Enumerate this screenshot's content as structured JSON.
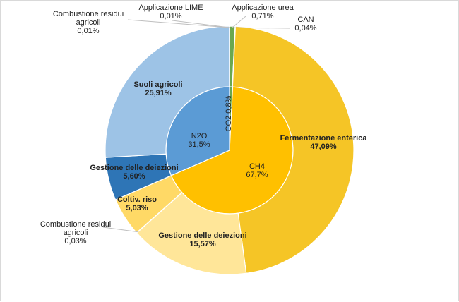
{
  "chart_data": {
    "type": "pie",
    "title": "",
    "inner_ring": [
      {
        "name": "CO2",
        "value": 0.8,
        "label": "0,8%",
        "color": "#6aa84f"
      },
      {
        "name": "CH4",
        "value": 67.7,
        "label": "67,7%",
        "color": "#ffc000"
      },
      {
        "name": "N2O",
        "value": 31.5,
        "label": "31,5%",
        "color": "#5b9bd5"
      }
    ],
    "outer_ring": [
      {
        "name": "Applicazione LIME",
        "value": 0.01,
        "label": "0,01%",
        "gas": "CO2",
        "color": "#2e7d32"
      },
      {
        "name": "Applicazione urea",
        "value": 0.71,
        "label": "0,71%",
        "gas": "CO2",
        "color": "#6aa84f"
      },
      {
        "name": "CAN",
        "value": 0.04,
        "label": "0,04%",
        "gas": "CO2",
        "color": "#a9d18e"
      },
      {
        "name": "Fermentazione enterica",
        "value": 47.09,
        "label": "47,09%",
        "gas": "CH4",
        "color": "#f5c526"
      },
      {
        "name": "Gestione delle deiezioni",
        "value": 15.57,
        "label": "15,57%",
        "gas": "CH4",
        "color": "#ffe699"
      },
      {
        "name": "Combustione residui agricoli",
        "value": 0.03,
        "label": "0,03%",
        "gas": "CH4",
        "color": "#fff2cc"
      },
      {
        "name": "Coltiv. riso",
        "value": 5.03,
        "label": "5,03%",
        "gas": "CH4",
        "color": "#ffd966"
      },
      {
        "name": "Gestione delle deiezioni",
        "value": 5.6,
        "label": "5,60%",
        "gas": "N2O",
        "color": "#2e75b6"
      },
      {
        "name": "Suoli agricoli",
        "value": 25.91,
        "label": "25,91%",
        "gas": "N2O",
        "color": "#9dc3e6"
      },
      {
        "name": "Combustione residui agricoli",
        "value": 0.01,
        "label": "0,01%",
        "gas": "N2O",
        "color": "#deebf7"
      }
    ]
  }
}
